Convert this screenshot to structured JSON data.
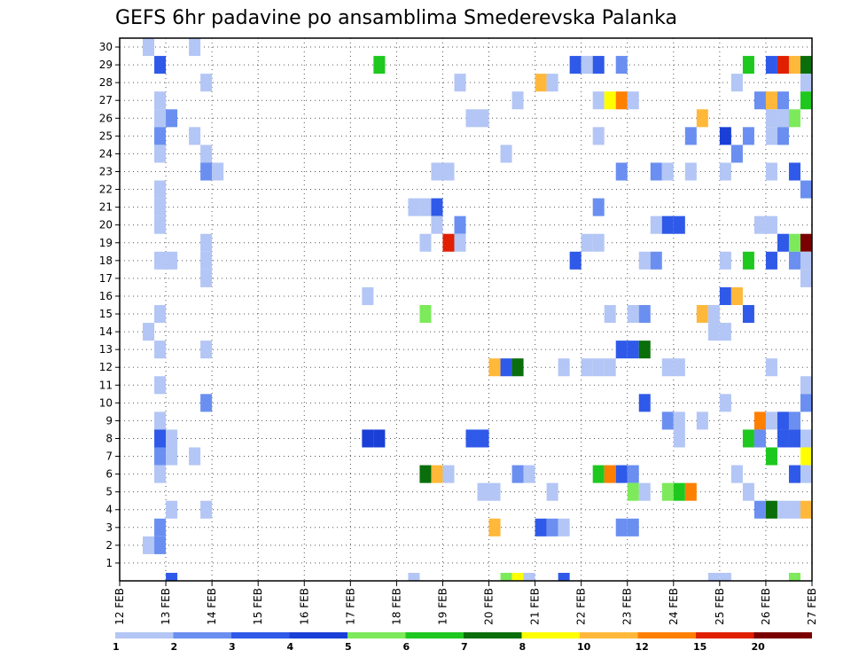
{
  "chart_data": {
    "type": "heatmap",
    "title": "GEFS 6hr padavine po ansamblima Smederevska Palanka",
    "y_ticks": [
      "1",
      "2",
      "3",
      "4",
      "5",
      "6",
      "7",
      "8",
      "9",
      "10",
      "11",
      "12",
      "13",
      "14",
      "15",
      "16",
      "17",
      "18",
      "19",
      "20",
      "21",
      "22",
      "23",
      "24",
      "25",
      "26",
      "27",
      "28",
      "29",
      "30"
    ],
    "y_range": [
      0,
      30
    ],
    "x_ticks": [
      "12 FEB",
      "13 FEB",
      "14 FEB",
      "15 FEB",
      "16 FEB",
      "17 FEB",
      "18 FEB",
      "19 FEB",
      "20 FEB",
      "21 FEB",
      "22 FEB",
      "23 FEB",
      "24 FEB",
      "25 FEB",
      "26 FEB",
      "27 FEB"
    ],
    "x_range_days": [
      12,
      27
    ],
    "step_hours": 6,
    "grid": "dotted",
    "colorbar": {
      "labels": [
        "1",
        "2",
        "3",
        "4",
        "5",
        "6",
        "7",
        "8",
        "10",
        "12",
        "15",
        "20"
      ],
      "colors": [
        "#b3c6f5",
        "#6a8ff0",
        "#2f59e8",
        "#1a3fd6",
        "#7cea5a",
        "#1ec81e",
        "#0a6e0a",
        "#ffff00",
        "#ffb83a",
        "#ff7f00",
        "#e02000",
        "#7a0000"
      ]
    },
    "cells": [
      {
        "d": 12.5,
        "m": 30,
        "v": 1
      },
      {
        "d": 13.5,
        "m": 30,
        "v": 1
      },
      {
        "d": 12.75,
        "m": 29,
        "v": 3
      },
      {
        "d": 17.5,
        "m": 29,
        "v": 6
      },
      {
        "d": 21.75,
        "m": 29,
        "v": 3
      },
      {
        "d": 22,
        "m": 29,
        "v": 1
      },
      {
        "d": 22.25,
        "m": 29,
        "v": 3
      },
      {
        "d": 22.75,
        "m": 29,
        "v": 2
      },
      {
        "d": 25.5,
        "m": 29,
        "v": 6
      },
      {
        "d": 26,
        "m": 29,
        "v": 3
      },
      {
        "d": 26.25,
        "m": 29,
        "v": 15
      },
      {
        "d": 26.5,
        "m": 29,
        "v": 10
      },
      {
        "d": 26.75,
        "m": 29,
        "v": 7
      },
      {
        "d": 13.75,
        "m": 28,
        "v": 1
      },
      {
        "d": 19.25,
        "m": 28,
        "v": 1
      },
      {
        "d": 21,
        "m": 28,
        "v": 10
      },
      {
        "d": 21.25,
        "m": 28,
        "v": 1
      },
      {
        "d": 25.25,
        "m": 28,
        "v": 1
      },
      {
        "d": 26.75,
        "m": 28,
        "v": 1
      },
      {
        "d": 12.75,
        "m": 27,
        "v": 1
      },
      {
        "d": 20.5,
        "m": 27,
        "v": 1
      },
      {
        "d": 22.25,
        "m": 27,
        "v": 1
      },
      {
        "d": 22.5,
        "m": 27,
        "v": 8
      },
      {
        "d": 22.75,
        "m": 27,
        "v": 12
      },
      {
        "d": 23,
        "m": 27,
        "v": 1
      },
      {
        "d": 25.75,
        "m": 27,
        "v": 2
      },
      {
        "d": 26,
        "m": 27,
        "v": 10
      },
      {
        "d": 26.25,
        "m": 27,
        "v": 2
      },
      {
        "d": 26.75,
        "m": 27,
        "v": 6
      },
      {
        "d": 12.75,
        "m": 26,
        "v": 1
      },
      {
        "d": 13,
        "m": 26,
        "v": 2
      },
      {
        "d": 19.5,
        "m": 26,
        "v": 1
      },
      {
        "d": 19.75,
        "m": 26,
        "v": 1
      },
      {
        "d": 24.5,
        "m": 26,
        "v": 10
      },
      {
        "d": 26,
        "m": 26,
        "v": 1
      },
      {
        "d": 26.25,
        "m": 26,
        "v": 1
      },
      {
        "d": 26.5,
        "m": 26,
        "v": 5
      },
      {
        "d": 12.75,
        "m": 25,
        "v": 2
      },
      {
        "d": 13.5,
        "m": 25,
        "v": 1
      },
      {
        "d": 22.25,
        "m": 25,
        "v": 1
      },
      {
        "d": 24.25,
        "m": 25,
        "v": 2
      },
      {
        "d": 25,
        "m": 25,
        "v": 4
      },
      {
        "d": 25.5,
        "m": 25,
        "v": 2
      },
      {
        "d": 26,
        "m": 25,
        "v": 1
      },
      {
        "d": 26.25,
        "m": 25,
        "v": 2
      },
      {
        "d": 12.75,
        "m": 24,
        "v": 1
      },
      {
        "d": 13.75,
        "m": 24,
        "v": 1
      },
      {
        "d": 20.25,
        "m": 24,
        "v": 1
      },
      {
        "d": 25.25,
        "m": 24,
        "v": 2
      },
      {
        "d": 13.75,
        "m": 23,
        "v": 2
      },
      {
        "d": 14,
        "m": 23,
        "v": 1
      },
      {
        "d": 18.75,
        "m": 23,
        "v": 1
      },
      {
        "d": 19,
        "m": 23,
        "v": 1
      },
      {
        "d": 22.75,
        "m": 23,
        "v": 2
      },
      {
        "d": 23.5,
        "m": 23,
        "v": 2
      },
      {
        "d": 23.75,
        "m": 23,
        "v": 1
      },
      {
        "d": 24.25,
        "m": 23,
        "v": 1
      },
      {
        "d": 25,
        "m": 23,
        "v": 1
      },
      {
        "d": 26,
        "m": 23,
        "v": 1
      },
      {
        "d": 26.5,
        "m": 23,
        "v": 3
      },
      {
        "d": 12.75,
        "m": 22,
        "v": 1
      },
      {
        "d": 26.75,
        "m": 22,
        "v": 2
      },
      {
        "d": 12.75,
        "m": 21,
        "v": 1
      },
      {
        "d": 18.25,
        "m": 21,
        "v": 1
      },
      {
        "d": 18.5,
        "m": 21,
        "v": 1
      },
      {
        "d": 18.75,
        "m": 21,
        "v": 3
      },
      {
        "d": 22.25,
        "m": 21,
        "v": 2
      },
      {
        "d": 12.75,
        "m": 20,
        "v": 1
      },
      {
        "d": 18.75,
        "m": 20,
        "v": 1
      },
      {
        "d": 19.25,
        "m": 20,
        "v": 2
      },
      {
        "d": 23.5,
        "m": 20,
        "v": 1
      },
      {
        "d": 23.75,
        "m": 20,
        "v": 3
      },
      {
        "d": 24,
        "m": 20,
        "v": 3
      },
      {
        "d": 25.75,
        "m": 20,
        "v": 1
      },
      {
        "d": 26,
        "m": 20,
        "v": 1
      },
      {
        "d": 13.75,
        "m": 19,
        "v": 1
      },
      {
        "d": 18.5,
        "m": 19,
        "v": 1
      },
      {
        "d": 19,
        "m": 19,
        "v": 15
      },
      {
        "d": 19.25,
        "m": 19,
        "v": 1
      },
      {
        "d": 22,
        "m": 19,
        "v": 1
      },
      {
        "d": 22.25,
        "m": 19,
        "v": 1
      },
      {
        "d": 26.25,
        "m": 19,
        "v": 3
      },
      {
        "d": 26.5,
        "m": 19,
        "v": 5
      },
      {
        "d": 26.75,
        "m": 19,
        "v": 20
      },
      {
        "d": 12.75,
        "m": 18,
        "v": 1
      },
      {
        "d": 13,
        "m": 18,
        "v": 1
      },
      {
        "d": 13.75,
        "m": 18,
        "v": 1
      },
      {
        "d": 21.75,
        "m": 18,
        "v": 3
      },
      {
        "d": 23.25,
        "m": 18,
        "v": 1
      },
      {
        "d": 23.5,
        "m": 18,
        "v": 2
      },
      {
        "d": 25,
        "m": 18,
        "v": 1
      },
      {
        "d": 25.5,
        "m": 18,
        "v": 6
      },
      {
        "d": 26,
        "m": 18,
        "v": 3
      },
      {
        "d": 26.5,
        "m": 18,
        "v": 2
      },
      {
        "d": 26.75,
        "m": 18,
        "v": 1
      },
      {
        "d": 13.75,
        "m": 17,
        "v": 1
      },
      {
        "d": 26.75,
        "m": 17,
        "v": 1
      },
      {
        "d": 17.25,
        "m": 16,
        "v": 1
      },
      {
        "d": 25,
        "m": 16,
        "v": 3
      },
      {
        "d": 25.25,
        "m": 16,
        "v": 10
      },
      {
        "d": 12.75,
        "m": 15,
        "v": 1
      },
      {
        "d": 18.5,
        "m": 15,
        "v": 5
      },
      {
        "d": 22.5,
        "m": 15,
        "v": 1
      },
      {
        "d": 23,
        "m": 15,
        "v": 1
      },
      {
        "d": 23.25,
        "m": 15,
        "v": 2
      },
      {
        "d": 24.5,
        "m": 15,
        "v": 10
      },
      {
        "d": 24.75,
        "m": 15,
        "v": 1
      },
      {
        "d": 25.5,
        "m": 15,
        "v": 3
      },
      {
        "d": 12.5,
        "m": 14,
        "v": 1
      },
      {
        "d": 24.75,
        "m": 14,
        "v": 1
      },
      {
        "d": 25,
        "m": 14,
        "v": 1
      },
      {
        "d": 12.75,
        "m": 13,
        "v": 1
      },
      {
        "d": 13.75,
        "m": 13,
        "v": 1
      },
      {
        "d": 22.75,
        "m": 13,
        "v": 3
      },
      {
        "d": 23,
        "m": 13,
        "v": 3
      },
      {
        "d": 23.25,
        "m": 13,
        "v": 7
      },
      {
        "d": 20,
        "m": 12,
        "v": 10
      },
      {
        "d": 20.25,
        "m": 12,
        "v": 3
      },
      {
        "d": 20.5,
        "m": 12,
        "v": 7
      },
      {
        "d": 21.5,
        "m": 12,
        "v": 1
      },
      {
        "d": 22,
        "m": 12,
        "v": 1
      },
      {
        "d": 22.25,
        "m": 12,
        "v": 1
      },
      {
        "d": 22.5,
        "m": 12,
        "v": 1
      },
      {
        "d": 23.75,
        "m": 12,
        "v": 1
      },
      {
        "d": 24,
        "m": 12,
        "v": 1
      },
      {
        "d": 26,
        "m": 12,
        "v": 1
      },
      {
        "d": 12.75,
        "m": 11,
        "v": 1
      },
      {
        "d": 26.75,
        "m": 11,
        "v": 1
      },
      {
        "d": 13.75,
        "m": 10,
        "v": 2
      },
      {
        "d": 23.25,
        "m": 10,
        "v": 3
      },
      {
        "d": 25,
        "m": 10,
        "v": 1
      },
      {
        "d": 26.75,
        "m": 10,
        "v": 2
      },
      {
        "d": 12.75,
        "m": 9,
        "v": 1
      },
      {
        "d": 23.75,
        "m": 9,
        "v": 2
      },
      {
        "d": 24,
        "m": 9,
        "v": 1
      },
      {
        "d": 24.5,
        "m": 9,
        "v": 1
      },
      {
        "d": 25.75,
        "m": 9,
        "v": 12
      },
      {
        "d": 26,
        "m": 9,
        "v": 1
      },
      {
        "d": 26.25,
        "m": 9,
        "v": 3
      },
      {
        "d": 26.5,
        "m": 9,
        "v": 2
      },
      {
        "d": 12.75,
        "m": 8,
        "v": 3
      },
      {
        "d": 13,
        "m": 8,
        "v": 1
      },
      {
        "d": 17.25,
        "m": 8,
        "v": 4
      },
      {
        "d": 17.5,
        "m": 8,
        "v": 4
      },
      {
        "d": 19.5,
        "m": 8,
        "v": 3
      },
      {
        "d": 19.75,
        "m": 8,
        "v": 3
      },
      {
        "d": 24,
        "m": 8,
        "v": 1
      },
      {
        "d": 25.5,
        "m": 8,
        "v": 6
      },
      {
        "d": 25.75,
        "m": 8,
        "v": 2
      },
      {
        "d": 26.25,
        "m": 8,
        "v": 3
      },
      {
        "d": 26.5,
        "m": 8,
        "v": 3
      },
      {
        "d": 26.75,
        "m": 8,
        "v": 1
      },
      {
        "d": 12.75,
        "m": 7,
        "v": 2
      },
      {
        "d": 13,
        "m": 7,
        "v": 1
      },
      {
        "d": 13.5,
        "m": 7,
        "v": 1
      },
      {
        "d": 26,
        "m": 7,
        "v": 6
      },
      {
        "d": 26.75,
        "m": 7,
        "v": 8
      },
      {
        "d": 12.75,
        "m": 6,
        "v": 1
      },
      {
        "d": 18.5,
        "m": 6,
        "v": 7
      },
      {
        "d": 18.75,
        "m": 6,
        "v": 10
      },
      {
        "d": 19,
        "m": 6,
        "v": 1
      },
      {
        "d": 20.5,
        "m": 6,
        "v": 2
      },
      {
        "d": 20.75,
        "m": 6,
        "v": 1
      },
      {
        "d": 22.25,
        "m": 6,
        "v": 6
      },
      {
        "d": 22.5,
        "m": 6,
        "v": 12
      },
      {
        "d": 22.75,
        "m": 6,
        "v": 3
      },
      {
        "d": 23,
        "m": 6,
        "v": 2
      },
      {
        "d": 25.25,
        "m": 6,
        "v": 1
      },
      {
        "d": 26.5,
        "m": 6,
        "v": 3
      },
      {
        "d": 26.75,
        "m": 6,
        "v": 1
      },
      {
        "d": 19.75,
        "m": 5,
        "v": 1
      },
      {
        "d": 20,
        "m": 5,
        "v": 1
      },
      {
        "d": 21.25,
        "m": 5,
        "v": 1
      },
      {
        "d": 23,
        "m": 5,
        "v": 5
      },
      {
        "d": 23.25,
        "m": 5,
        "v": 1
      },
      {
        "d": 23.75,
        "m": 5,
        "v": 5
      },
      {
        "d": 24,
        "m": 5,
        "v": 6
      },
      {
        "d": 24.25,
        "m": 5,
        "v": 12
      },
      {
        "d": 25.5,
        "m": 5,
        "v": 1
      },
      {
        "d": 13,
        "m": 4,
        "v": 1
      },
      {
        "d": 13.75,
        "m": 4,
        "v": 1
      },
      {
        "d": 25.75,
        "m": 4,
        "v": 2
      },
      {
        "d": 26,
        "m": 4,
        "v": 7
      },
      {
        "d": 26.25,
        "m": 4,
        "v": 1
      },
      {
        "d": 26.5,
        "m": 4,
        "v": 1
      },
      {
        "d": 26.75,
        "m": 4,
        "v": 10
      },
      {
        "d": 12.75,
        "m": 3,
        "v": 2
      },
      {
        "d": 20,
        "m": 3,
        "v": 10
      },
      {
        "d": 21,
        "m": 3,
        "v": 3
      },
      {
        "d": 21.25,
        "m": 3,
        "v": 2
      },
      {
        "d": 21.5,
        "m": 3,
        "v": 1
      },
      {
        "d": 22.75,
        "m": 3,
        "v": 2
      },
      {
        "d": 23,
        "m": 3,
        "v": 2
      },
      {
        "d": 12.5,
        "m": 2,
        "v": 1
      },
      {
        "d": 12.75,
        "m": 2,
        "v": 2
      }
    ],
    "bottom_row": [
      {
        "d": 13,
        "v": 3
      },
      {
        "d": 18.25,
        "v": 1
      },
      {
        "d": 20.25,
        "v": 5
      },
      {
        "d": 20.5,
        "v": 8
      },
      {
        "d": 20.75,
        "v": 1
      },
      {
        "d": 21.5,
        "v": 3
      },
      {
        "d": 24.75,
        "v": 1
      },
      {
        "d": 25,
        "v": 1
      },
      {
        "d": 26.5,
        "v": 5
      }
    ]
  }
}
